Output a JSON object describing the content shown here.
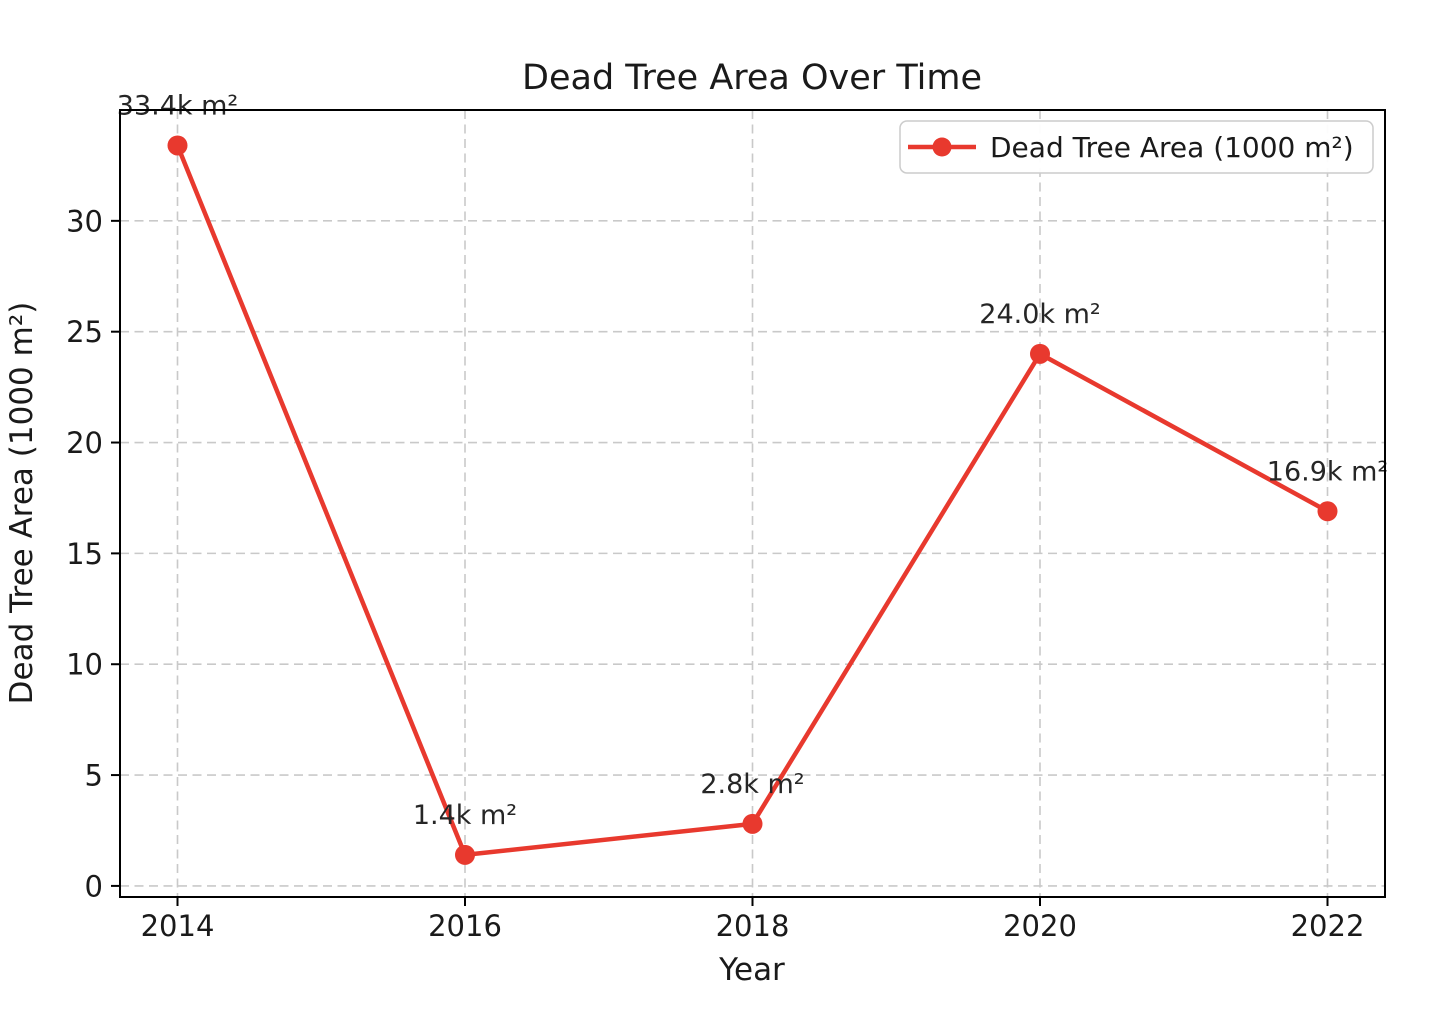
{
  "chart_data": {
    "type": "line",
    "title": "Dead Tree Area Over Time",
    "xlabel": "Year",
    "ylabel": "Dead Tree Area (1000 m²)",
    "x": [
      2014,
      2016,
      2018,
      2020,
      2022
    ],
    "x_tick_labels": [
      "2014",
      "2016",
      "2018",
      "2020",
      "2022"
    ],
    "y_ticks": [
      0,
      5,
      10,
      15,
      20,
      25,
      30
    ],
    "xlim": [
      2013.6,
      2022.4
    ],
    "ylim": [
      -0.5,
      35.0
    ],
    "grid": "dashed-both-axes",
    "legend_position": "upper-right",
    "series": [
      {
        "name": "Dead Tree Area (1000 m²)",
        "values": [
          33.4,
          1.4,
          2.8,
          24.0,
          16.9
        ],
        "point_labels": [
          "33.4k m²",
          "1.4k m²",
          "2.8k m²",
          "24.0k m²",
          "16.9k m²"
        ],
        "marker": "circle"
      }
    ],
    "colors": {
      "line": "#e8392e",
      "marker": "#e8392e",
      "grid": "#c9c9c9",
      "spine": "#000000",
      "text": "#1a1a1a",
      "annotation": "#262626",
      "background": "#ffffff",
      "legend_border": "#cccccc",
      "legend_background": "#ffffff"
    }
  }
}
